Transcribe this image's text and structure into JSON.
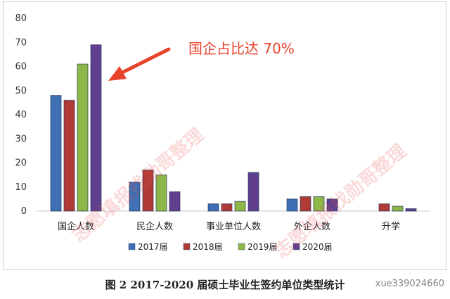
{
  "chart_data": {
    "type": "bar",
    "categories": [
      "国企人数",
      "民企人数",
      "事业单位人数",
      "外企人数",
      "升学"
    ],
    "series": [
      {
        "name": "2017届",
        "color": "#3f6fb5",
        "values": [
          48,
          12,
          3,
          5,
          0
        ]
      },
      {
        "name": "2018届",
        "color": "#b03a35",
        "values": [
          46,
          17,
          3,
          6,
          3
        ]
      },
      {
        "name": "2019届",
        "color": "#8db848",
        "values": [
          61,
          15,
          4,
          6,
          2
        ]
      },
      {
        "name": "2020届",
        "color": "#5f3f8e",
        "values": [
          69,
          8,
          16,
          5,
          1
        ]
      }
    ],
    "ylim": [
      0,
      80
    ],
    "yticks": [
      0,
      10,
      20,
      30,
      40,
      50,
      60,
      70,
      80
    ],
    "grid": false,
    "legend_position": "bottom",
    "annotation": {
      "text": "国企占比达 70%",
      "color": "#e8432d",
      "target_category": "国企人数"
    }
  },
  "caption": "图 2 2017-2020 届硕士毕业生签约单位类型统计",
  "watermark": "志愿填报找勋哥整理",
  "footer_id": "xue339024660"
}
